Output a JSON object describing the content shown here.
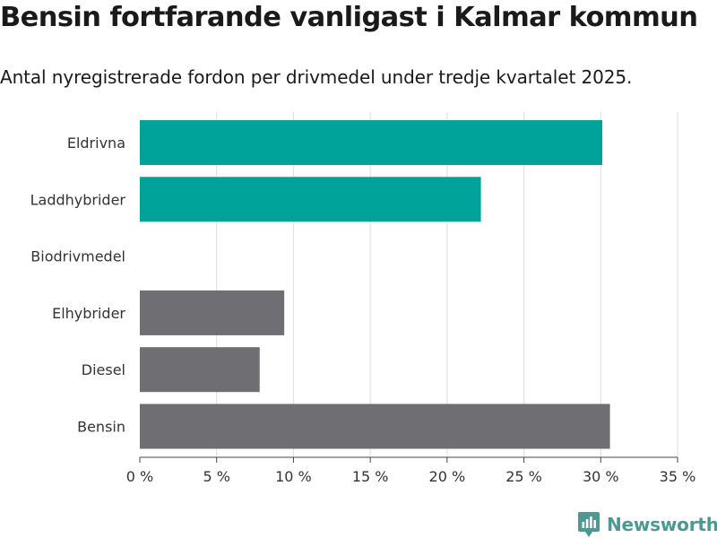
{
  "title": "Bensin fortfarande vanligast i Kalmar kommun",
  "subtitle": "Antal nyregistrerade fordon per drivmedel under tredje kvartalet 2025.",
  "brand": "Newsworthy",
  "chart_data": {
    "type": "bar",
    "orientation": "horizontal",
    "categories": [
      "Eldrivna",
      "Laddhybrider",
      "Biodrivmedel",
      "Elhybrider",
      "Diesel",
      "Bensin"
    ],
    "values": [
      30.1,
      22.2,
      0,
      9.4,
      7.8,
      30.6
    ],
    "colors": [
      "#00a39a",
      "#00a39a",
      "#00a39a",
      "#6e6e73",
      "#6e6e73",
      "#6e6e73"
    ],
    "xlim": [
      0,
      35
    ],
    "xticks": [
      0,
      5,
      10,
      15,
      20,
      25,
      30,
      35
    ],
    "xtick_labels": [
      "0 %",
      "5 %",
      "10 %",
      "15 %",
      "20 %",
      "25 %",
      "30 %",
      "35 %"
    ],
    "grid": true,
    "xlabel": "",
    "ylabel": ""
  }
}
